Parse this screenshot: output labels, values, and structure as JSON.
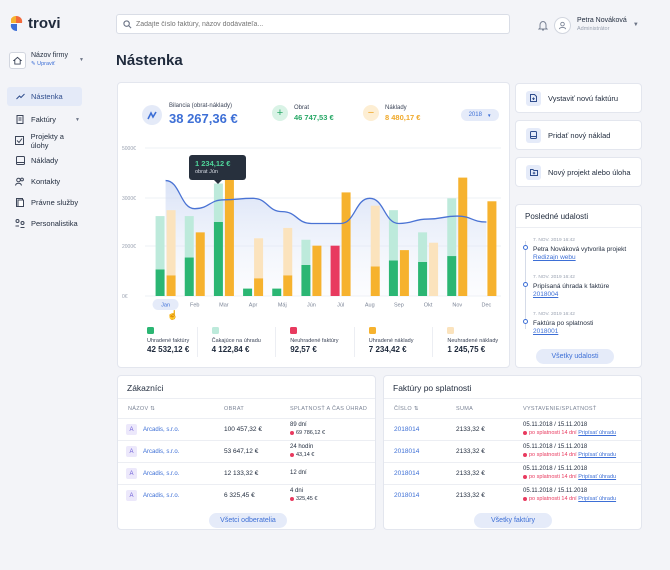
{
  "brand": {
    "name": "trovi"
  },
  "search": {
    "placeholder": "Zadajte číslo faktúry, názov dodávateľa..."
  },
  "user": {
    "name": "Petra Nováková",
    "role": "Administrátor"
  },
  "company": {
    "name": "Názov firmy",
    "edit": "Upraviť"
  },
  "sidebar": {
    "items": [
      {
        "label": "Nástenka",
        "icon": "trend-icon"
      },
      {
        "label": "Faktúry",
        "icon": "invoice-icon"
      },
      {
        "label": "Projekty a úlohy",
        "icon": "check-square-icon"
      },
      {
        "label": "Náklady",
        "icon": "book-icon"
      },
      {
        "label": "Kontakty",
        "icon": "users-icon"
      },
      {
        "label": "Právne služby",
        "icon": "document-icon"
      },
      {
        "label": "Personalistika",
        "icon": "people-icon"
      }
    ]
  },
  "page": {
    "title": "Nástenka"
  },
  "stats": {
    "balance": {
      "label": "Bilancia (obrat-náklady)",
      "value": "38 267,36 €"
    },
    "turnover": {
      "label": "Obrat",
      "value": "46 747,53 €"
    },
    "costs": {
      "label": "Náklady",
      "value": "8 480,17 €"
    },
    "year": "2018"
  },
  "tooltip": {
    "value": "1 234,12 €",
    "label": "obrat Jún"
  },
  "chart_data": {
    "type": "bar",
    "categories": [
      "Jan",
      "Feb",
      "Mar",
      "Apr",
      "Máj",
      "Jún",
      "Júl",
      "Aug",
      "Sep",
      "Okt",
      "Nov",
      "Dec"
    ],
    "y_ticks": [
      "5000€",
      "3000€",
      "2000€",
      "0€"
    ],
    "selected_category": "Jan",
    "series": [
      {
        "name": "Uhradené faktúry",
        "color": "#2bb673",
        "values": [
          900,
          1300,
          2500,
          250,
          250,
          1050,
          0,
          0,
          1200,
          1150,
          1350,
          0
        ]
      },
      {
        "name": "Čakajúce na úhradu",
        "color": "#bdeadb",
        "values": [
          1800,
          1400,
          1300,
          0,
          0,
          850,
          0,
          0,
          1700,
          1000,
          1950,
          0
        ]
      },
      {
        "name": "Neuhradené faktúry",
        "color": "#e83a5f",
        "values": [
          0,
          0,
          0,
          0,
          0,
          0,
          1700,
          0,
          0,
          0,
          0,
          0
        ]
      },
      {
        "name": "Uhradené náklady",
        "color": "#f6b22e",
        "values": [
          700,
          2150,
          4250,
          600,
          700,
          1700,
          3500,
          1000,
          1550,
          0,
          4000,
          3200
        ]
      },
      {
        "name": "Neuhradené náklady",
        "color": "#fbe3bd",
        "values": [
          2200,
          0,
          0,
          1350,
          1600,
          0,
          0,
          2050,
          0,
          1800,
          0,
          0
        ]
      }
    ],
    "line": [
      3900,
      2950,
      3250,
      3300,
      2850,
      2450,
      2450,
      3300,
      2450,
      2600,
      2700,
      2500
    ]
  },
  "legend": [
    {
      "name": "Uhradené faktúry",
      "value": "42 532,12 €",
      "color": "#2bb673"
    },
    {
      "name": "Čakajúce na úhradu",
      "value": "4 122,84 €",
      "color": "#bdeadb"
    },
    {
      "name": "Neuhradené faktúry",
      "value": "92,57 €",
      "color": "#e83a5f"
    },
    {
      "name": "Uhradené náklady",
      "value": "7 234,42 €",
      "color": "#f6b22e"
    },
    {
      "name": "Neuhradené náklady",
      "value": "1 245,75 €",
      "color": "#fbe3bd"
    }
  ],
  "actions": [
    {
      "label": "Vystaviť novú faktúru",
      "icon": "new-invoice-icon"
    },
    {
      "label": "Pridať nový náklad",
      "icon": "tablet-icon"
    },
    {
      "label": "Nový projekt alebo úloha",
      "icon": "folder-plus-icon"
    }
  ],
  "events": {
    "title": "Posledné udalosti",
    "items": [
      {
        "date": "7. NOV. 2019 16:42",
        "text": "Petra Nováková vytvorila projekt",
        "link": "Redizajn webu"
      },
      {
        "date": "7. NOV. 2019 16:42",
        "text": "Pripísaná úhrada k faktúre",
        "link": "2018004"
      },
      {
        "date": "7. NOV. 2019 16:42",
        "text": "Faktúra po splatnosti",
        "link": "2018001"
      }
    ],
    "all": "Všetky udalosti"
  },
  "customers": {
    "title": "Zákazníci",
    "headers": [
      "NÁZOV",
      "OBRAT",
      "SPLATNOSŤ A ČAS ÚHRAD"
    ],
    "rows": [
      {
        "avatar": "A",
        "name": "Arcadis, s.r.o.",
        "turnover": "100 457,32 €",
        "due": "89 dní",
        "overdue": "69 786,12 €"
      },
      {
        "avatar": "A",
        "name": "Arcadis, s.r.o.",
        "turnover": "53 647,12 €",
        "due": "24 hodín",
        "overdue": "43,14 €"
      },
      {
        "avatar": "A",
        "name": "Arcadis, s.r.o.",
        "turnover": "12 133,32 €",
        "due": "12 dní",
        "overdue": ""
      },
      {
        "avatar": "A",
        "name": "Arcadis, s.r.o.",
        "turnover": "6 325,45 €",
        "due": "4 dni",
        "overdue": "325,45 €"
      }
    ],
    "all": "Všetci odberatelia"
  },
  "invoices": {
    "title": "Faktúry po splatnosti",
    "headers": [
      "ČÍSLO",
      "SUMA",
      "VYSTAVENIE/SPLATNOSŤ"
    ],
    "rows": [
      {
        "number": "2018014",
        "amount": "2133,32 €",
        "dates": "05.11.2018 / 15.11.2018",
        "status": "po splatnosti 14 dní",
        "action": "Pripísať úhradu"
      },
      {
        "number": "2018014",
        "amount": "2133,32 €",
        "dates": "05.11.2018 / 15.11.2018",
        "status": "po splatnosti 14 dní",
        "action": "Pripísať úhradu"
      },
      {
        "number": "2018014",
        "amount": "2133,32 €",
        "dates": "05.11.2018 / 15.11.2018",
        "status": "po splatnosti 14 dní",
        "action": "Pripísať úhradu"
      },
      {
        "number": "2018014",
        "amount": "2133,32 €",
        "dates": "05.11.2018 / 15.11.2018",
        "status": "po splatnosti 14 dní",
        "action": "Pripísať úhradu"
      }
    ],
    "all": "Všetky faktúry"
  }
}
